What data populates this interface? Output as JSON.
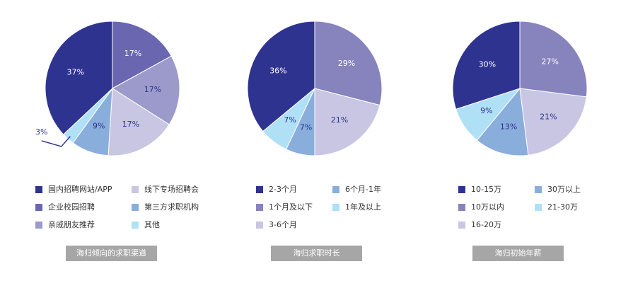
{
  "chart_data": [
    {
      "type": "pie",
      "title": "海归倾向的求职渠道",
      "categories": [
        "国内招聘网站/APP",
        "企业校园招聘",
        "亲戚朋友推荐",
        "线下专场招聘会",
        "第三方求职机构",
        "其他"
      ],
      "values": [
        37,
        17,
        17,
        17,
        9,
        3
      ],
      "value_labels": [
        "37%",
        "17%",
        "17%",
        "17%",
        "9%",
        "3%"
      ],
      "colors": [
        "#2f3390",
        "#6a67b0",
        "#9c9acb",
        "#c8c6e2",
        "#8aaedb",
        "#b0e0f5"
      ]
    },
    {
      "type": "pie",
      "title": "海归求职时长",
      "categories": [
        "2-3个月",
        "1个月及以下",
        "3-6个月",
        "6个月-1年",
        "1年及以上"
      ],
      "values": [
        36,
        29,
        21,
        7,
        7
      ],
      "value_labels": [
        "36%",
        "29%",
        "21%",
        "7%",
        "7%"
      ],
      "colors": [
        "#2f3390",
        "#8783bd",
        "#c8c6e2",
        "#8aaedb",
        "#b0e0f5"
      ]
    },
    {
      "type": "pie",
      "title": "海归初始年薪",
      "categories": [
        "10-15万",
        "10万以内",
        "16-20万",
        "30万以上",
        "21-30万"
      ],
      "values": [
        30,
        27,
        21,
        13,
        9
      ],
      "value_labels": [
        "30%",
        "27%",
        "21%",
        "13%",
        "9%"
      ],
      "colors": [
        "#2f3390",
        "#8783bd",
        "#c8c6e2",
        "#8aaedb",
        "#b0e0f5"
      ]
    }
  ]
}
